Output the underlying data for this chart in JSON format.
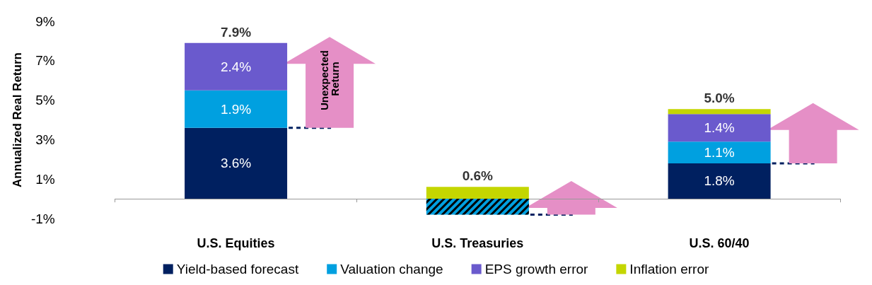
{
  "chart_data": {
    "type": "bar",
    "stacked": true,
    "categories": [
      "U.S. Equities",
      "U.S. Treasuries",
      "U.S. 60/40"
    ],
    "ylabel": "Annualized Real Return",
    "ylim": [
      -1,
      9
    ],
    "yticks": [
      {
        "value": -1,
        "label": "-1%"
      },
      {
        "value": 1,
        "label": "1%"
      },
      {
        "value": 3,
        "label": "3%"
      },
      {
        "value": 5,
        "label": "5%"
      },
      {
        "value": 7,
        "label": "7%"
      },
      {
        "value": 9,
        "label": "9%"
      }
    ],
    "series": [
      {
        "name": "Yield-based forecast",
        "color": "#002060",
        "values": [
          3.6,
          null,
          1.8
        ],
        "value_labels": [
          "3.6%",
          null,
          "1.8%"
        ]
      },
      {
        "name": "Valuation change",
        "color": "#00a0e0",
        "values": [
          1.9,
          -0.8,
          1.1
        ],
        "value_labels": [
          "1.9%",
          null,
          "1.1%"
        ]
      },
      {
        "name": "EPS growth error",
        "color": "#6a5acd",
        "values": [
          2.4,
          null,
          1.4
        ],
        "value_labels": [
          "2.4%",
          null,
          "1.4%"
        ]
      },
      {
        "name": "Inflation error",
        "color": "#c4d600",
        "values": [
          null,
          0.6,
          0.25
        ]
      }
    ],
    "annotations": [
      {
        "text": "7.9%",
        "x": "U.S. Equities",
        "y": 7.9
      },
      {
        "text": "0.6%",
        "x": "U.S. Treasuries",
        "y": 0.6
      },
      {
        "text": "5.0%",
        "x": "U.S. 60/40",
        "y": 4.55
      },
      "Unexpected Return"
    ],
    "legend": "bottom",
    "grid": false
  }
}
